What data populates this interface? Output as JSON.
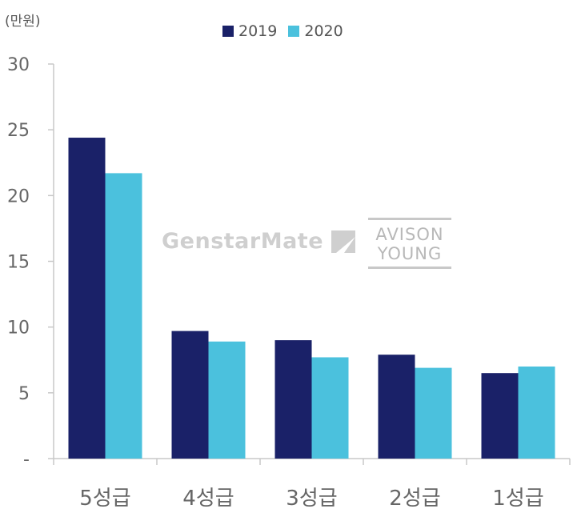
{
  "unit_label": "(만원)",
  "legend": [
    {
      "name": "2019",
      "color": "#1a2168"
    },
    {
      "name": "2020",
      "color": "#4bc1dd"
    }
  ],
  "watermarks": {
    "genstarmate": "GenstarMate",
    "avison_line1": "AVISON",
    "avison_line2": "YOUNG"
  },
  "chart_data": {
    "type": "bar",
    "title": "",
    "xlabel": "",
    "ylabel": "(만원)",
    "categories": [
      "5성급",
      "4성급",
      "3성급",
      "2성급",
      "1성급"
    ],
    "ylim": [
      0,
      30
    ],
    "y_ticks": [
      "-",
      "5",
      "10",
      "15",
      "20",
      "25",
      "30"
    ],
    "grid": false,
    "legend_position": "top-center",
    "series": [
      {
        "name": "2019",
        "color": "#1a2168",
        "values": [
          24.4,
          9.7,
          9.0,
          7.9,
          6.5
        ]
      },
      {
        "name": "2020",
        "color": "#4bc1dd",
        "values": [
          21.7,
          8.9,
          7.7,
          6.9,
          7.0
        ]
      }
    ]
  }
}
